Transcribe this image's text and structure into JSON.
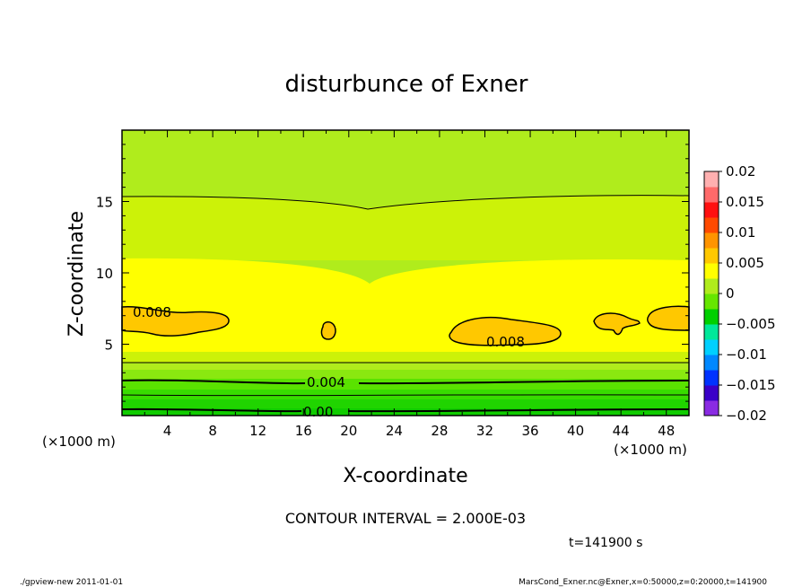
{
  "chart_data": {
    "type": "heatmap",
    "title": "disturbunce of Exner",
    "xlabel": "X-coordinate",
    "ylabel": "Z-coordinate",
    "x_unit": "(×1000 m)",
    "y_unit": "(×1000 m)",
    "xlim": [
      0,
      50
    ],
    "ylim": [
      0,
      20
    ],
    "x_ticks": [
      4,
      8,
      12,
      16,
      20,
      24,
      28,
      32,
      36,
      40,
      44,
      48
    ],
    "y_ticks": [
      5,
      10,
      15
    ],
    "colorbar": {
      "ticks": [
        "0.02",
        "0.015",
        "0.01",
        "0.005",
        "0",
        "−0.005",
        "−0.01",
        "−0.015",
        "−0.02"
      ],
      "range": [
        -0.02,
        0.02
      ],
      "step": 0.0025,
      "colors": [
        "#8a2be2",
        "#3a00c8",
        "#0033ff",
        "#0088ff",
        "#00d0ff",
        "#00e89a",
        "#00d000",
        "#66e600",
        "#b0ec1c",
        "#ffff00",
        "#ffc800",
        "#ff9400",
        "#ff4a00",
        "#ff1010",
        "#ff6a6a",
        "#ffb0b0"
      ]
    },
    "contour_labels": [
      {
        "text": "0.008",
        "x": 2.3,
        "z": 7.2
      },
      {
        "text": "0.008",
        "x": 32.0,
        "z": 5.2
      },
      {
        "text": "0.004",
        "x": 18.0,
        "z": 2.2
      },
      {
        "text": "0.00",
        "x": 17.2,
        "z": 0.2
      }
    ],
    "bands": [
      {
        "level": 0.0055,
        "color": "#b0ec1c"
      },
      {
        "level": 0.00575,
        "color": "#ccf208"
      },
      {
        "level": 0.006,
        "color": "#ffff00"
      },
      {
        "level": 0.0062,
        "color": "#ffff00"
      },
      {
        "level": 0.0054,
        "color": "#b0ec1c"
      },
      {
        "level": 0.0048,
        "color": "#8ae810"
      },
      {
        "level": 0.0042,
        "color": "#5ae200"
      },
      {
        "level": 0.0036,
        "color": "#38dc00"
      },
      {
        "level": 0.0028,
        "color": "#20d400"
      },
      {
        "level": 0.002,
        "color": "#10cc00"
      }
    ],
    "contour_interval_note": "CONTOUR INTERVAL = 2.000E-03",
    "time_note": "t=141900 s"
  },
  "footer": {
    "left": "./gpview-new   2011-01-01",
    "right": "MarsCond_Exner.nc@Exner,x=0:50000,z=0:20000,t=141900"
  }
}
